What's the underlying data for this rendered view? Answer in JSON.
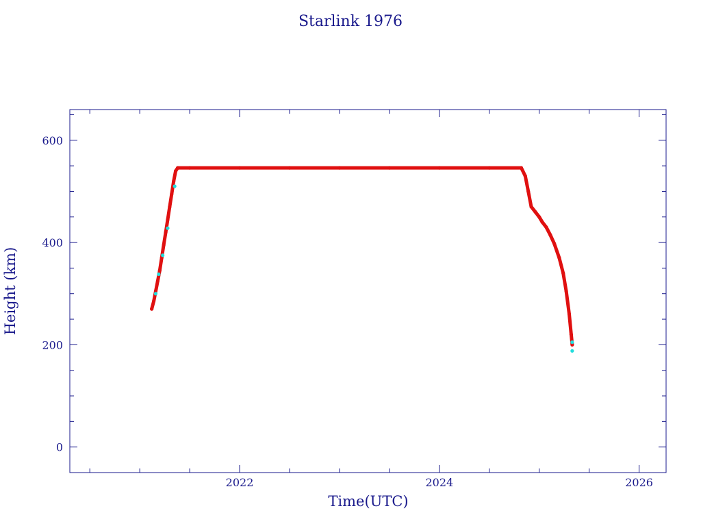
{
  "chart_data": {
    "type": "scatter",
    "title": "Starlink 1976",
    "xlabel": "Time(UTC)",
    "ylabel": "Height (km)",
    "xlim": [
      2020.3,
      2026.27
    ],
    "ylim": [
      -50,
      660
    ],
    "x_ticks": [
      2022,
      2024,
      2026
    ],
    "y_ticks": [
      0,
      200,
      400,
      600
    ],
    "x_minor_step": 0.5,
    "y_minor_step": 50,
    "grid": false,
    "colors": {
      "axis": "#1a1a8c",
      "text": "#1a1a8c",
      "main_series": "#e01010",
      "accent_points": "#22dddd"
    },
    "series": [
      {
        "points": [
          [
            2021.12,
            270
          ],
          [
            2021.14,
            285
          ],
          [
            2021.16,
            305
          ],
          [
            2021.18,
            325
          ],
          [
            2021.2,
            345
          ],
          [
            2021.22,
            370
          ],
          [
            2021.24,
            395
          ],
          [
            2021.26,
            420
          ],
          [
            2021.28,
            445
          ],
          [
            2021.3,
            470
          ],
          [
            2021.32,
            495
          ],
          [
            2021.34,
            520
          ],
          [
            2021.36,
            540
          ],
          [
            2021.38,
            546
          ],
          [
            2021.5,
            546
          ],
          [
            2022.0,
            546
          ],
          [
            2022.5,
            546
          ],
          [
            2023.0,
            546
          ],
          [
            2023.5,
            546
          ],
          [
            2024.0,
            546
          ],
          [
            2024.5,
            546
          ],
          [
            2024.82,
            546
          ],
          [
            2024.86,
            530
          ],
          [
            2024.89,
            500
          ],
          [
            2024.92,
            470
          ],
          [
            2024.96,
            460
          ],
          [
            2025.0,
            450
          ],
          [
            2025.03,
            440
          ],
          [
            2025.07,
            430
          ],
          [
            2025.11,
            415
          ],
          [
            2025.15,
            398
          ],
          [
            2025.2,
            370
          ],
          [
            2025.24,
            340
          ],
          [
            2025.27,
            305
          ],
          [
            2025.3,
            260
          ],
          [
            2025.32,
            220
          ],
          [
            2025.33,
            200
          ]
        ]
      },
      {
        "points": [
          [
            2021.16,
            300
          ],
          [
            2021.19,
            338
          ],
          [
            2021.23,
            375
          ],
          [
            2021.28,
            428
          ],
          [
            2021.35,
            510
          ],
          [
            2025.33,
            205
          ],
          [
            2025.33,
            188
          ]
        ]
      }
    ]
  }
}
